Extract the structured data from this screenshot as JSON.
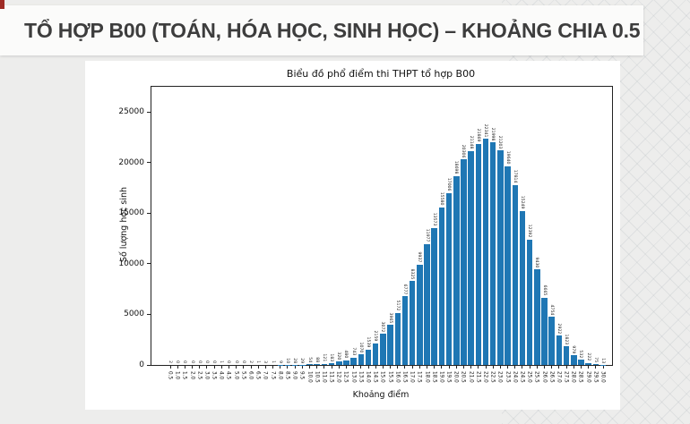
{
  "slide": {
    "title": "TỔ HỢP B00 (TOÁN, HÓA HỌC, SINH HỌC) – KHOẢNG CHIA 0.5"
  },
  "colors": {
    "bar": "#1f77b4",
    "background": "#ededec",
    "banner": "#fbfbfa",
    "title_text": "#3d3d3d"
  },
  "chart_data": {
    "type": "bar",
    "title": "Biểu đồ phổ điểm thi THPT tổ hợp B00",
    "xlabel": "Khoảng điểm",
    "ylabel": "Số lượng học sinh",
    "ylim": [
      0,
      27500
    ],
    "yticks": [
      0,
      5000,
      10000,
      15000,
      20000,
      25000
    ],
    "grid": false,
    "legend": "none",
    "bar_color": "#1f77b4",
    "categories": [
      "0.5",
      "1.0",
      "1.5",
      "2.0",
      "2.5",
      "3.0",
      "3.5",
      "4.0",
      "4.5",
      "5.0",
      "5.5",
      "6.0",
      "6.5",
      "7.0",
      "7.5",
      "8.0",
      "8.5",
      "9.0",
      "9.5",
      "10.0",
      "10.5",
      "11.0",
      "11.5",
      "12.0",
      "12.5",
      "13.0",
      "13.5",
      "14.0",
      "14.5",
      "15.0",
      "15.5",
      "16.0",
      "16.5",
      "17.0",
      "17.5",
      "18.0",
      "18.5",
      "19.0",
      "19.5",
      "20.0",
      "20.5",
      "21.0",
      "21.5",
      "22.0",
      "22.5",
      "23.0",
      "23.5",
      "24.0",
      "24.5",
      "25.0",
      "25.5",
      "26.0",
      "26.5",
      "27.0",
      "27.5",
      "28.0",
      "28.5",
      "29.0",
      "29.5",
      "30.0"
    ],
    "values": [
      2,
      0,
      0,
      0,
      0,
      0,
      0,
      1,
      0,
      0,
      0,
      2,
      1,
      3,
      1,
      9,
      10,
      28,
      29,
      54,
      88,
      121,
      183,
      320,
      480,
      743,
      1070,
      1539,
      2159,
      3072,
      3965,
      5172,
      6777,
      8325,
      9937,
      11977,
      13573,
      15580,
      17006,
      18698,
      20306,
      21148,
      21869,
      22341,
      21998,
      21203,
      19640,
      17814,
      15249,
      12392,
      9430,
      6665,
      4754,
      2922,
      1823,
      979,
      532,
      222,
      75,
      13
    ]
  }
}
